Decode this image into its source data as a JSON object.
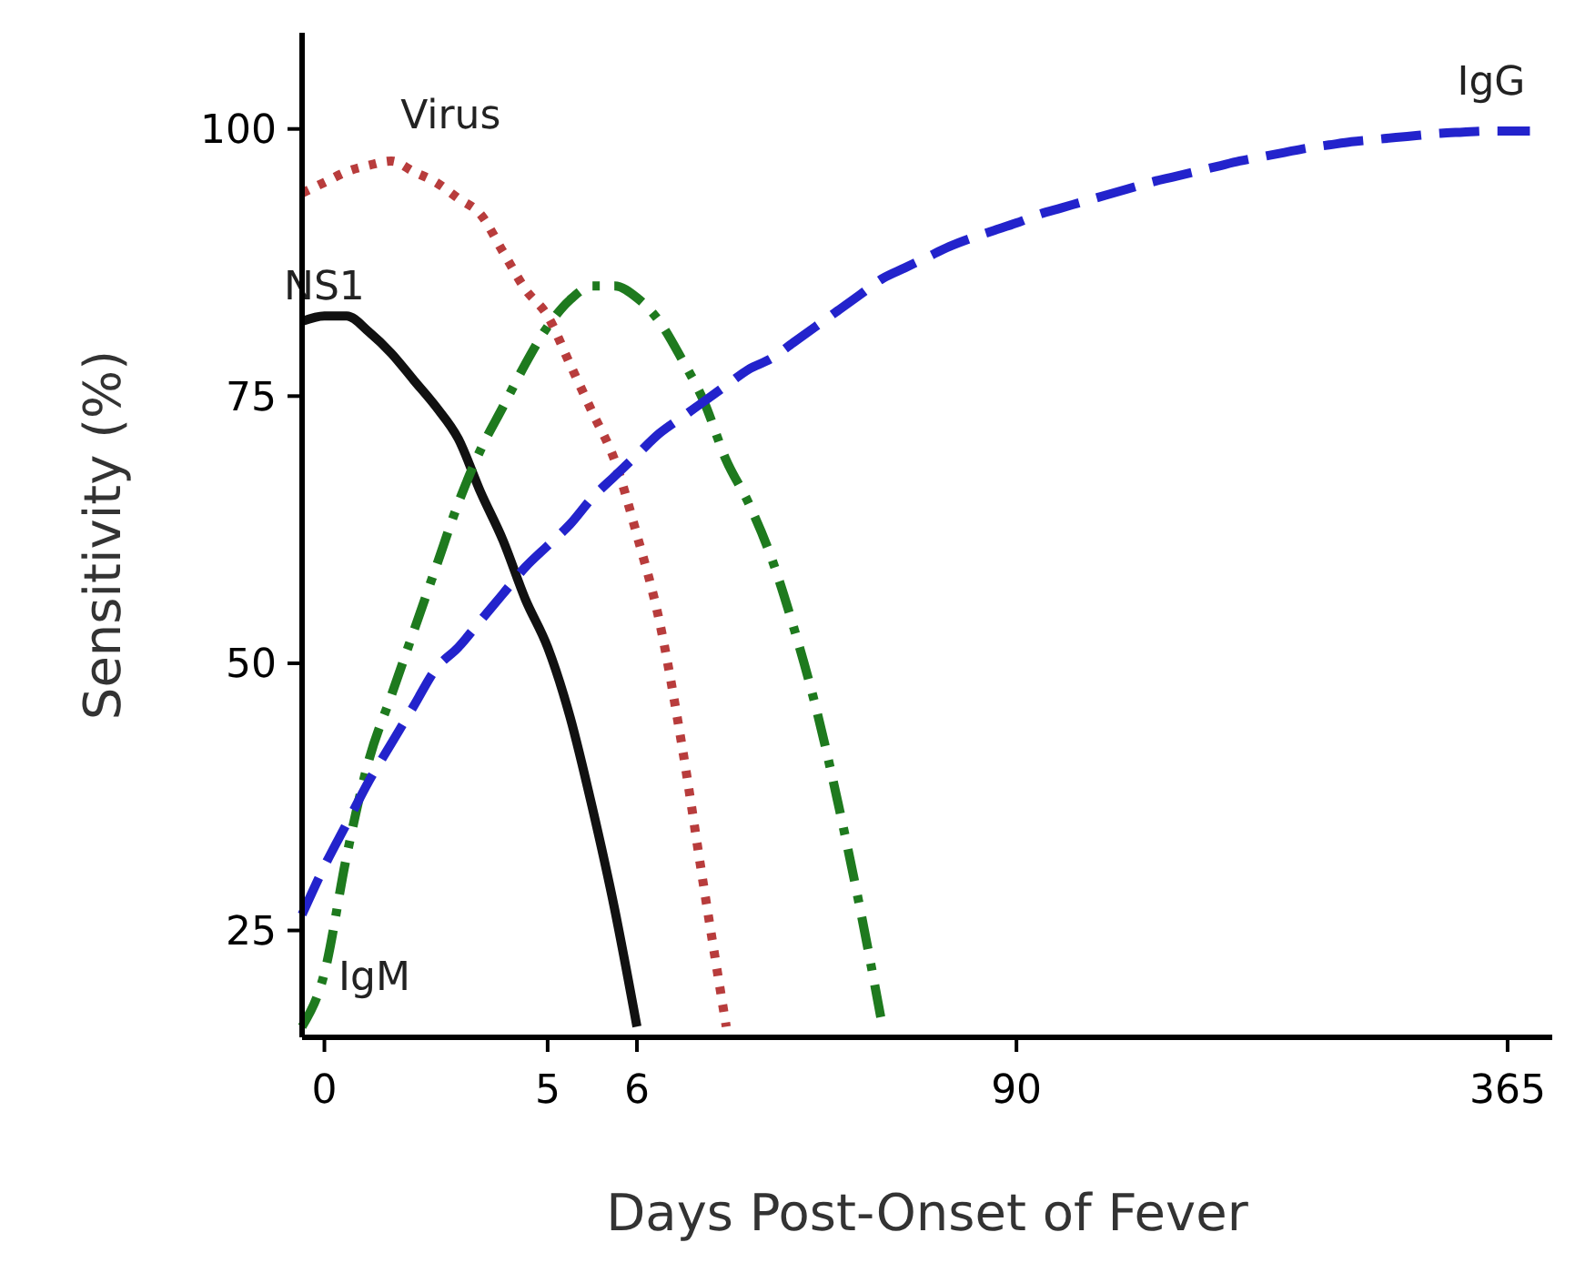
{
  "chart_data": {
    "type": "line",
    "xlabel": "Days Post-Onset of Fever",
    "ylabel": "Sensitivity (%)",
    "categories": [
      null,
      "0",
      null,
      null,
      null,
      null,
      null,
      null,
      null,
      null,
      null,
      "5",
      null,
      null,
      null,
      "6",
      null,
      null,
      null,
      null,
      null,
      null,
      null,
      null,
      null,
      null,
      null,
      null,
      null,
      null,
      null,
      null,
      "90",
      null,
      null,
      null,
      null,
      null,
      null,
      null,
      null,
      null,
      null,
      null,
      null,
      null,
      null,
      null,
      null,
      null,
      null,
      null,
      null,
      null,
      "365",
      null,
      null
    ],
    "ylim": [
      15,
      109
    ],
    "yticks": [
      25,
      50,
      75,
      100
    ],
    "grid": false,
    "legend": false,
    "marker": "none",
    "series": [
      {
        "name": "Virus",
        "color": "#b83c3c",
        "line_style": "dotted",
        "values": [
          94,
          95,
          96,
          96.6,
          97,
          96,
          95,
          93.5,
          92,
          88.5,
          85,
          82.5,
          78,
          73.5,
          69,
          62,
          54,
          42.5,
          29,
          16,
          null,
          null,
          null,
          null,
          null,
          null,
          null,
          null,
          null,
          null,
          null,
          null,
          null,
          null,
          null,
          null,
          null,
          null,
          null,
          null,
          null,
          null,
          null,
          null,
          null,
          null,
          null,
          null,
          null,
          null,
          null,
          null,
          null,
          null,
          null,
          null,
          null
        ]
      },
      {
        "name": "NS1",
        "color": "#111111",
        "line_style": "solid",
        "values": [
          82,
          82.5,
          82.5,
          81,
          79,
          76.5,
          74,
          71,
          66,
          61.5,
          56,
          51.5,
          45,
          36.5,
          27,
          16,
          null,
          null,
          null,
          null,
          null,
          null,
          null,
          null,
          null,
          null,
          null,
          null,
          null,
          null,
          null,
          null,
          null,
          null,
          null,
          null,
          null,
          null,
          null,
          null,
          null,
          null,
          null,
          null,
          null,
          null,
          null,
          null,
          null,
          null,
          null,
          null,
          null,
          null,
          null,
          null,
          null
        ]
      },
      {
        "name": "IgM",
        "color": "#1e7a1e",
        "line_style": "dashdot",
        "values": [
          16,
          21,
          32,
          41,
          47,
          53,
          59,
          65,
          70,
          74,
          78,
          81.5,
          84,
          85.3,
          85.3,
          84.2,
          82,
          78.5,
          74.5,
          69,
          65,
          60,
          53.5,
          46,
          37,
          27,
          16,
          null,
          null,
          null,
          null,
          null,
          null,
          null,
          null,
          null,
          null,
          null,
          null,
          null,
          null,
          null,
          null,
          null,
          null,
          null,
          null,
          null,
          null,
          null,
          null,
          null,
          null,
          null,
          null,
          null,
          null
        ]
      },
      {
        "name": "IgG",
        "color": "#2323cc",
        "line_style": "dashed",
        "values": [
          26.5,
          31,
          35,
          39,
          42.5,
          46,
          49.5,
          51.5,
          54,
          56.5,
          59,
          61,
          63,
          65.5,
          67.5,
          69.5,
          71.5,
          73,
          74.5,
          76,
          77.5,
          78.5,
          80,
          81.5,
          83,
          84.5,
          86,
          87,
          88,
          89,
          89.8,
          90.5,
          91.2,
          92,
          92.6,
          93.2,
          93.8,
          94.4,
          95,
          95.5,
          96,
          96.5,
          97,
          97.4,
          97.8,
          98.2,
          98.5,
          98.8,
          99,
          99.2,
          99.4,
          99.6,
          99.7,
          99.8,
          99.8,
          99.8,
          null
        ]
      }
    ]
  }
}
